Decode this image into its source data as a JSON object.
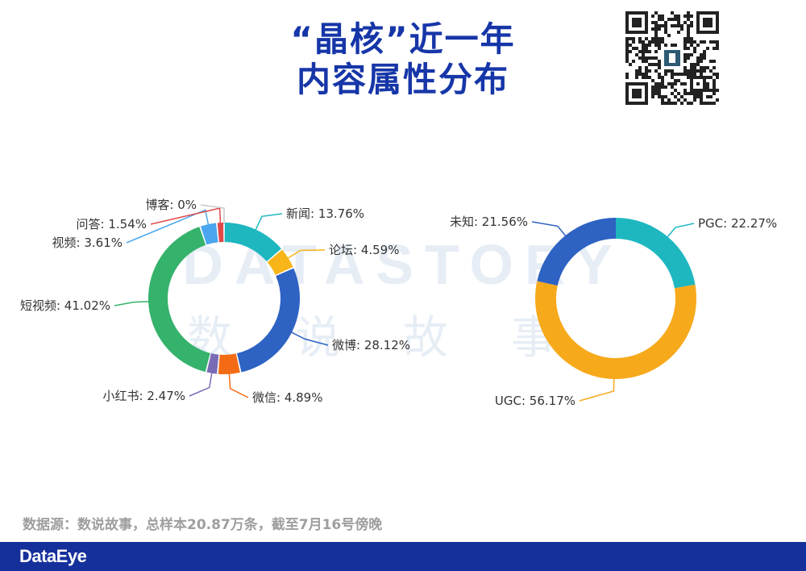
{
  "title": {
    "line1": "“晶核”近一年",
    "line2": "内容属性分布"
  },
  "watermark": {
    "latin": "DATASTORY",
    "cjk": "数说故事"
  },
  "source_note": "数据源：数说故事，总样本20.87万条，截至7月16号傍晚",
  "brand": "DataEye",
  "chart_data": [
    {
      "type": "pie",
      "donut": true,
      "start_angle_deg": 0,
      "direction": "clockwise",
      "categories": [
        "新闻",
        "论坛",
        "微博",
        "微信",
        "小红书",
        "短视频",
        "视频",
        "问答",
        "博客"
      ],
      "values": [
        13.76,
        4.59,
        28.12,
        4.89,
        2.47,
        41.02,
        3.61,
        1.54,
        0
      ],
      "labels": [
        "新闻: 13.76%",
        "论坛: 4.59%",
        "微博: 28.12%",
        "微信: 4.89%",
        "小红书: 2.47%",
        "短视频: 41.02%",
        "视频: 3.61%",
        "问答: 1.54%",
        "博客: 0%"
      ],
      "colors": [
        "#1eb7c0",
        "#f7b519",
        "#2e62c3",
        "#f36b15",
        "#7a6bb6",
        "#35b26c",
        "#4aa6ef",
        "#e04848",
        "#c9c9c9"
      ],
      "title": ""
    },
    {
      "type": "pie",
      "donut": true,
      "start_angle_deg": 0,
      "direction": "clockwise",
      "categories": [
        "PGC",
        "UGC",
        "未知"
      ],
      "values": [
        22.27,
        56.17,
        21.56
      ],
      "labels": [
        "PGC: 22.27%",
        "UGC: 56.17%",
        "未知: 21.56%"
      ],
      "colors": [
        "#1eb7c0",
        "#f7a91c",
        "#2e62c3"
      ],
      "title": ""
    }
  ]
}
